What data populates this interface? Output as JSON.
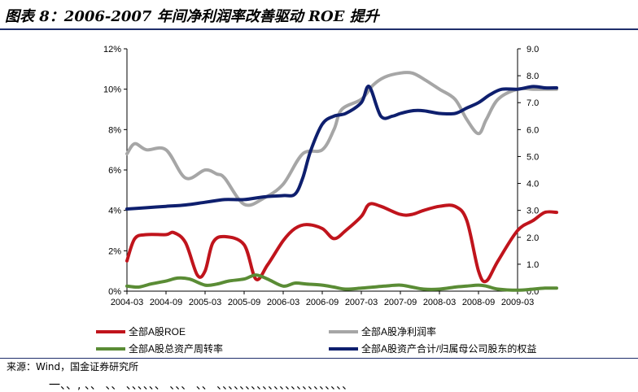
{
  "header": {
    "title": "图表 8：2006-2007 年间净利润率改善驱动 ROE 提升"
  },
  "footer": {
    "source": "来源：Wind，国金证券研究所",
    "cut_text": "一、、, 、、 、、 、、、、、、  、、、 、、 、、、、、、、、、、、、、、、、、、、、、、、"
  },
  "chart_data": {
    "type": "line",
    "x_ticks": [
      "2004-03",
      "2004-09",
      "2005-03",
      "2005-09",
      "2006-03",
      "2006-09",
      "2007-03",
      "2007-09",
      "2008-03",
      "2008-09",
      "2009-03"
    ],
    "y_left": {
      "ticks": [
        "0%",
        "2%",
        "4%",
        "6%",
        "8%",
        "10%",
        "12%"
      ],
      "range": [
        0,
        12
      ]
    },
    "y_right": {
      "ticks": [
        "0.0",
        "1.0",
        "2.0",
        "3.0",
        "4.0",
        "5.0",
        "6.0",
        "7.0",
        "8.0",
        "9.0"
      ],
      "range": [
        0,
        9
      ]
    },
    "grid": false,
    "legend_position": "bottom",
    "series": [
      {
        "name": "全部A股ROE",
        "axis": "left",
        "color": "#c0141c",
        "x": [
          0,
          0.2,
          0.5,
          1,
          1.2,
          1.5,
          1.8,
          2,
          2.2,
          2.5,
          3,
          3.3,
          3.6,
          4,
          4.3,
          4.6,
          5,
          5.3,
          5.6,
          6,
          6.2,
          6.5,
          7,
          7.3,
          7.6,
          8,
          8.4,
          8.7,
          9,
          9.2,
          9.5,
          10,
          10.4,
          10.7,
          11
        ],
        "y": [
          1.5,
          2.6,
          2.8,
          2.8,
          2.9,
          2.4,
          0.8,
          1.0,
          2.4,
          2.7,
          2.3,
          0.6,
          1.3,
          2.5,
          3.1,
          3.3,
          3.1,
          2.6,
          3.0,
          3.7,
          4.3,
          4.2,
          3.8,
          3.8,
          4.0,
          4.2,
          4.2,
          3.5,
          1.0,
          0.5,
          1.5,
          3.0,
          3.5,
          3.9,
          3.9
        ]
      },
      {
        "name": "全部A股净利润率",
        "axis": "left",
        "color": "#a6a6a6",
        "x": [
          0,
          0.2,
          0.5,
          1,
          1.5,
          2,
          2.3,
          2.5,
          3,
          3.5,
          4,
          4.5,
          5,
          5.3,
          5.5,
          6,
          6.3,
          6.6,
          7,
          7.3,
          7.6,
          8,
          8.4,
          8.7,
          9,
          9.2,
          9.5,
          10,
          10.4,
          10.7,
          11
        ],
        "y": [
          6.8,
          7.3,
          7.0,
          7.0,
          5.6,
          6.0,
          5.8,
          5.6,
          4.3,
          4.6,
          5.3,
          6.8,
          7.0,
          8.0,
          9.0,
          9.5,
          10.2,
          10.6,
          10.8,
          10.8,
          10.5,
          10.0,
          9.5,
          8.5,
          7.8,
          8.5,
          9.5,
          10.0,
          10.0,
          10.0,
          10.0
        ]
      },
      {
        "name": "全部A股总资产周转率",
        "axis": "left",
        "color": "#5a8c35",
        "x": [
          0,
          0.3,
          0.6,
          1,
          1.3,
          1.6,
          2,
          2.3,
          2.6,
          3,
          3.3,
          3.6,
          4,
          4.3,
          4.6,
          5,
          5.3,
          5.6,
          6,
          6.3,
          6.6,
          7,
          7.3,
          7.6,
          8,
          8.4,
          8.7,
          9,
          9.2,
          9.5,
          10,
          10.4,
          10.7,
          11
        ],
        "y": [
          0.25,
          0.2,
          0.35,
          0.5,
          0.65,
          0.6,
          0.3,
          0.35,
          0.5,
          0.6,
          0.8,
          0.6,
          0.25,
          0.4,
          0.35,
          0.3,
          0.2,
          0.1,
          0.15,
          0.2,
          0.25,
          0.3,
          0.2,
          0.1,
          0.1,
          0.2,
          0.25,
          0.3,
          0.25,
          0.1,
          0.05,
          0.1,
          0.15,
          0.15
        ]
      },
      {
        "name": "全部A股资产合计/归属母公司股东的权益",
        "axis": "right",
        "color": "#0e1f6e",
        "x": [
          0,
          0.5,
          1,
          1.5,
          2,
          2.5,
          3,
          3.5,
          4,
          4.3,
          4.5,
          4.7,
          5,
          5.3,
          5.6,
          6,
          6.2,
          6.5,
          6.8,
          7,
          7.3,
          7.6,
          8,
          8.4,
          8.7,
          9,
          9.3,
          9.6,
          10,
          10.4,
          10.7,
          11
        ],
        "y": [
          3.05,
          3.1,
          3.15,
          3.2,
          3.3,
          3.4,
          3.4,
          3.5,
          3.55,
          3.6,
          4.2,
          5.2,
          6.2,
          6.5,
          6.6,
          7.0,
          7.6,
          6.5,
          6.5,
          6.6,
          6.7,
          6.7,
          6.6,
          6.6,
          6.8,
          7.0,
          7.3,
          7.5,
          7.5,
          7.6,
          7.55,
          7.55
        ]
      }
    ]
  }
}
